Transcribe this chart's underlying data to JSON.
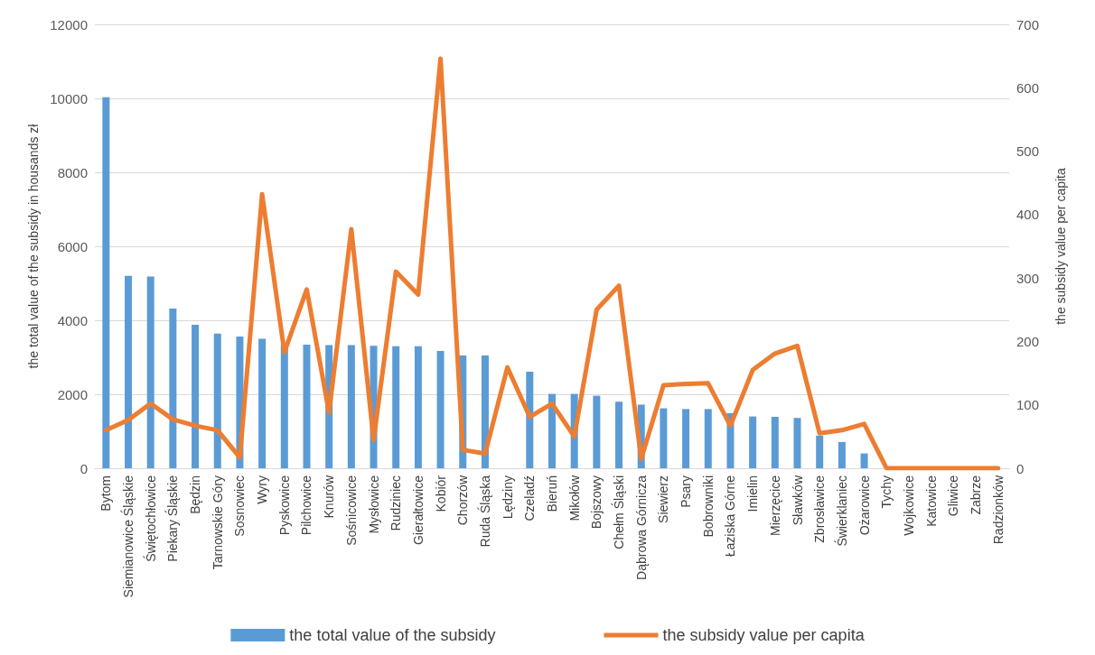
{
  "chart_data": {
    "type": "bar",
    "ylabel": "the total value of the subsidy in housands zł",
    "y2label": "the subsidy value per capita",
    "categories": [
      "Bytom",
      "Siemianowice Śląskie",
      "Świętochłowice",
      "Piekary Śląskie",
      "Będzin",
      "Tarnowskie Góry",
      "Sosnowiec",
      "Wyry",
      "Pyskowice",
      "Pilchowice",
      "Knurów",
      "Sośnicowice",
      "Mysłowice",
      "Rudziniec",
      "Gierałtowice",
      "Kobiór",
      "Chorzów",
      "Ruda Śląska",
      "Lędziny",
      "Czeladź",
      "Bieruń",
      "Mikołów",
      "Bojszowy",
      "Chełm Śląski",
      "Dąbrowa Górnicza",
      "Siewierz",
      "Psary",
      "Bobrowniki",
      "Łaziska Górne",
      "Imielin",
      "Mierzęcice",
      "Sławków",
      "Zbrosławice",
      "Świerklaniec",
      "Ożarowice",
      "Tychy",
      "Wojkowice",
      "Katowice",
      "Gliwice",
      "Zabrze",
      "Radzionków"
    ],
    "series": [
      {
        "name": "the total value of the subsidy",
        "color": "#5b9bd5",
        "values": [
          10030,
          5200,
          5180,
          4320,
          3880,
          3640,
          3560,
          3500,
          3350,
          3340,
          3330,
          3330,
          3310,
          3300,
          3300,
          3170,
          3050,
          3050,
          null,
          2610,
          2010,
          2010,
          1960,
          1800,
          1720,
          1620,
          1600,
          1600,
          1490,
          1400,
          1390,
          1360,
          880,
          710,
          400,
          0,
          0,
          0,
          0,
          0,
          0
        ]
      },
      {
        "name": "the subsidy value per capita",
        "type": "line",
        "axis": "y2",
        "color": "#ed7d31",
        "values": [
          60,
          76,
          102,
          77,
          67,
          60,
          17,
          432,
          183,
          282,
          88,
          377,
          45,
          310,
          274,
          646,
          29,
          23,
          159,
          81,
          102,
          50,
          250,
          288,
          15,
          131,
          133,
          134,
          67,
          155,
          181,
          193,
          55,
          60,
          70,
          0,
          0,
          0,
          0,
          0,
          0
        ]
      }
    ],
    "ylim": [
      0,
      12000
    ],
    "yticks": [
      0,
      2000,
      4000,
      6000,
      8000,
      10000,
      12000
    ],
    "y2lim": [
      0,
      700
    ],
    "y2ticks": [
      0,
      100,
      200,
      300,
      400,
      500,
      600,
      700
    ],
    "grid": "y",
    "legend": "bottom",
    "marker": "none",
    "line_style": "solid"
  }
}
